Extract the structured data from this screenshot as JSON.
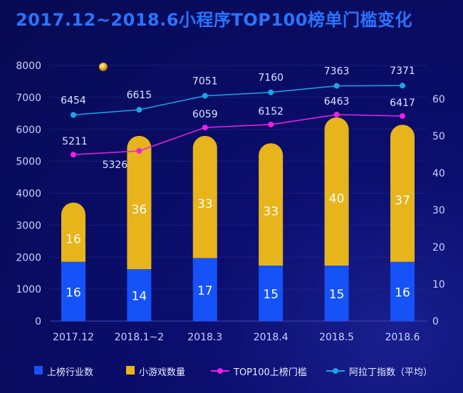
{
  "title": "2017.12~2018.6小程序TOP100榜单门槛变化",
  "colors": {
    "industry": "#1552f7",
    "games": "#e7b41c",
    "threshold": "#f01fe6",
    "aladdin": "#1aa6e8",
    "axis_text": "#c9d2ff",
    "label_text": "#dde4ff"
  },
  "legend": {
    "industry": "上榜行业数",
    "games": "小游戏数量",
    "threshold": "TOP100上榜门槛",
    "aladdin": "阿拉丁指数（平均）"
  },
  "chart_data": {
    "type": "bar",
    "categories": [
      "2017.12",
      "2018.1~2",
      "2018.3",
      "2018.4",
      "2018.5",
      "2018.6"
    ],
    "series": [
      {
        "name": "上榜行业数",
        "kind": "bar",
        "stack": "a",
        "axis": "right",
        "values": [
          16,
          14,
          17,
          15,
          15,
          16
        ]
      },
      {
        "name": "小游戏数量",
        "kind": "bar",
        "stack": "a",
        "axis": "right",
        "values": [
          16,
          36,
          33,
          33,
          40,
          37
        ]
      },
      {
        "name": "TOP100上榜门槛",
        "kind": "line",
        "axis": "left",
        "values": [
          5211,
          5326,
          6059,
          6152,
          6463,
          6417
        ]
      },
      {
        "name": "阿拉丁指数（平均）",
        "kind": "line",
        "axis": "left",
        "values": [
          6454,
          6615,
          7051,
          7160,
          7363,
          7371
        ]
      }
    ],
    "y_left": {
      "min": 0,
      "max": 8000,
      "ticks": [
        0,
        1000,
        2000,
        3000,
        4000,
        5000,
        6000,
        7000,
        8000
      ]
    },
    "y_right": {
      "min": 0,
      "max": 69,
      "ticks": [
        0,
        10,
        20,
        30,
        40,
        50,
        60
      ]
    },
    "grid": true,
    "legend_position": "bottom"
  }
}
